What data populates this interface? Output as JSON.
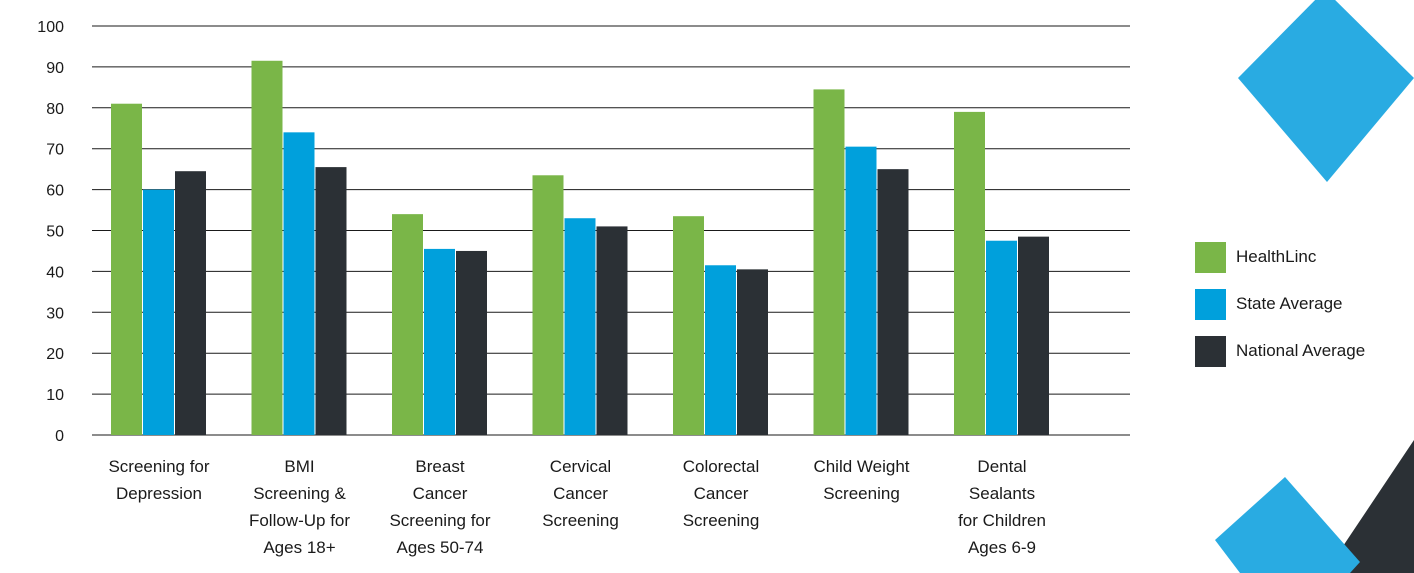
{
  "chart_data": {
    "type": "bar",
    "categories": [
      [
        "Screening for",
        "Depression"
      ],
      [
        "BMI",
        "Screening &",
        "Follow-Up for",
        "Ages 18+"
      ],
      [
        "Breast",
        "Cancer",
        "Screening for",
        "Ages 50-74"
      ],
      [
        "Cervical",
        "Cancer",
        "Screening"
      ],
      [
        "Colorectal",
        "Cancer",
        "Screening"
      ],
      [
        "Child Weight",
        "Screening"
      ],
      [
        "Dental",
        "Sealants",
        "for Children",
        "Ages 6-9"
      ]
    ],
    "series": [
      {
        "name": "HealthLinc",
        "color": "#7ab648",
        "values": [
          81,
          91.5,
          54,
          63.5,
          53.5,
          84.5,
          79
        ]
      },
      {
        "name": "State Average",
        "color": "#00a0dc",
        "values": [
          60,
          74,
          45.5,
          53,
          41.5,
          70.5,
          47.5
        ]
      },
      {
        "name": "National Average",
        "color": "#2b3035",
        "values": [
          64.5,
          65.5,
          45,
          51,
          40.5,
          65,
          48.5
        ]
      }
    ],
    "ylim": [
      0,
      100
    ],
    "yticks": [
      0,
      10,
      20,
      30,
      40,
      50,
      60,
      70,
      80,
      90,
      100
    ],
    "grid": true,
    "legend_position": "right",
    "title": "",
    "xlabel": "",
    "ylabel": ""
  },
  "decor": {
    "light_blue": "#29abe2",
    "dark": "#2b3035",
    "shapes": [
      "diamond-top-right",
      "diamond-bottom-right"
    ]
  }
}
